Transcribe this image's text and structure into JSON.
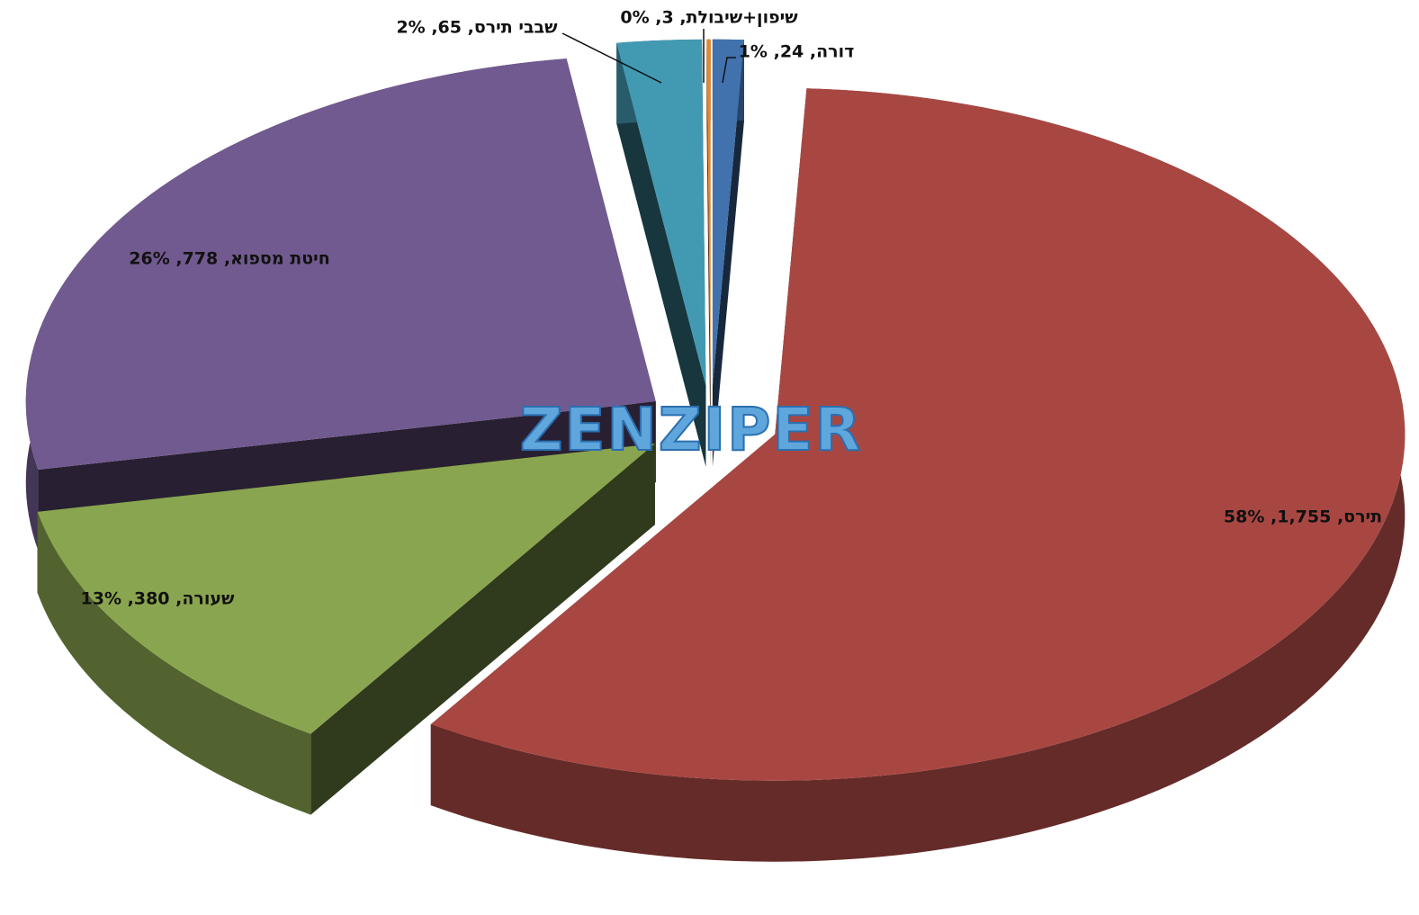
{
  "chart_data": {
    "type": "pie",
    "values": [
      24,
      1755,
      380,
      778,
      65,
      3
    ],
    "value_labels": [
      "דורה, 24, 1%",
      "תירס, 1,755, 58%",
      "שעורה, 380, 13%",
      "חיטת מספוא, 778, 26%",
      "שבבי תירס, 65, 2%",
      "שיפון+שיבולת, 3, 0%"
    ],
    "colors": [
      "#4272ae",
      "#a84742",
      "#8aa54f",
      "#715a8f",
      "#4299b2",
      "#e5892f"
    ],
    "watermark": "ZENZIPER"
  }
}
